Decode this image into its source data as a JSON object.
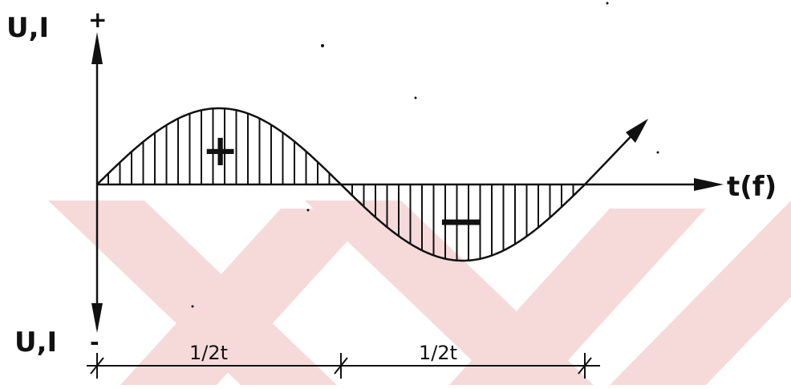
{
  "labels": {
    "y_top": "U,I",
    "y_bottom": "U,I",
    "plus_top": "+",
    "minus_bottom": "-",
    "x_axis": "t(f)",
    "positive_lobe": "+",
    "negative_lobe": "—",
    "dim_first_half": "1/2t",
    "dim_second_half": "1/2t"
  },
  "colors": {
    "ink": "#111111",
    "watermark": "#f6dada"
  }
}
